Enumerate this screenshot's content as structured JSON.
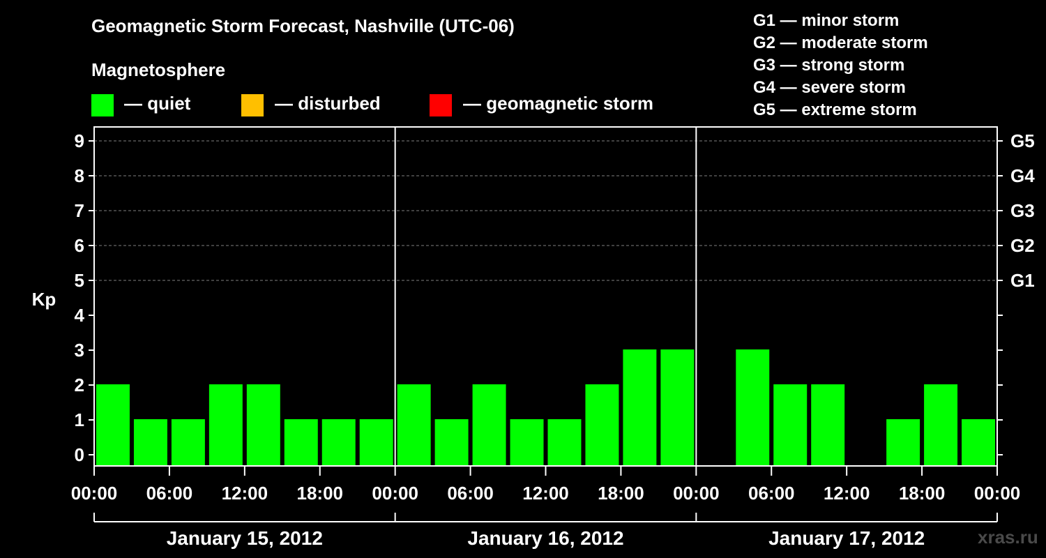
{
  "header": {
    "title": "Geomagnetic Storm Forecast, Nashville (UTC-06)",
    "legend_title": "Magnetosphere",
    "legend": [
      {
        "label": "— quiet",
        "color": "#00ff00"
      },
      {
        "label": "— disturbed",
        "color": "#ffbf00"
      },
      {
        "label": "— geomagnetic storm",
        "color": "#ff0000"
      }
    ],
    "g_scale": [
      "G1 — minor storm",
      "G2 — moderate storm",
      "G3 — strong storm",
      "G4 — severe storm",
      "G5 — extreme storm"
    ]
  },
  "watermark": "xras.ru",
  "chart_data": {
    "type": "bar",
    "ylabel": "Kp",
    "ylim": [
      0,
      9
    ],
    "y_ticks": [
      "0",
      "1",
      "2",
      "3",
      "4",
      "5",
      "6",
      "7",
      "8",
      "9"
    ],
    "right_ticks": [
      {
        "kp": 5,
        "label": "G1"
      },
      {
        "kp": 6,
        "label": "G2"
      },
      {
        "kp": 7,
        "label": "G3"
      },
      {
        "kp": 8,
        "label": "G4"
      },
      {
        "kp": 9,
        "label": "G5"
      }
    ],
    "x_ticks": [
      "00:00",
      "06:00",
      "12:00",
      "18:00",
      "00:00",
      "06:00",
      "12:00",
      "18:00",
      "00:00",
      "06:00",
      "12:00",
      "18:00",
      "00:00"
    ],
    "days": [
      "January 15, 2012",
      "January 16, 2012",
      "January 17, 2012"
    ],
    "grid": "dashed at Kp 5–9",
    "series": [
      {
        "color": "#00ff00",
        "values": [
          2,
          1,
          1,
          2,
          2,
          1,
          1,
          1,
          2,
          1,
          2,
          1,
          1,
          2,
          3,
          3,
          0,
          3,
          2,
          2,
          0,
          1,
          2,
          1
        ]
      }
    ]
  }
}
